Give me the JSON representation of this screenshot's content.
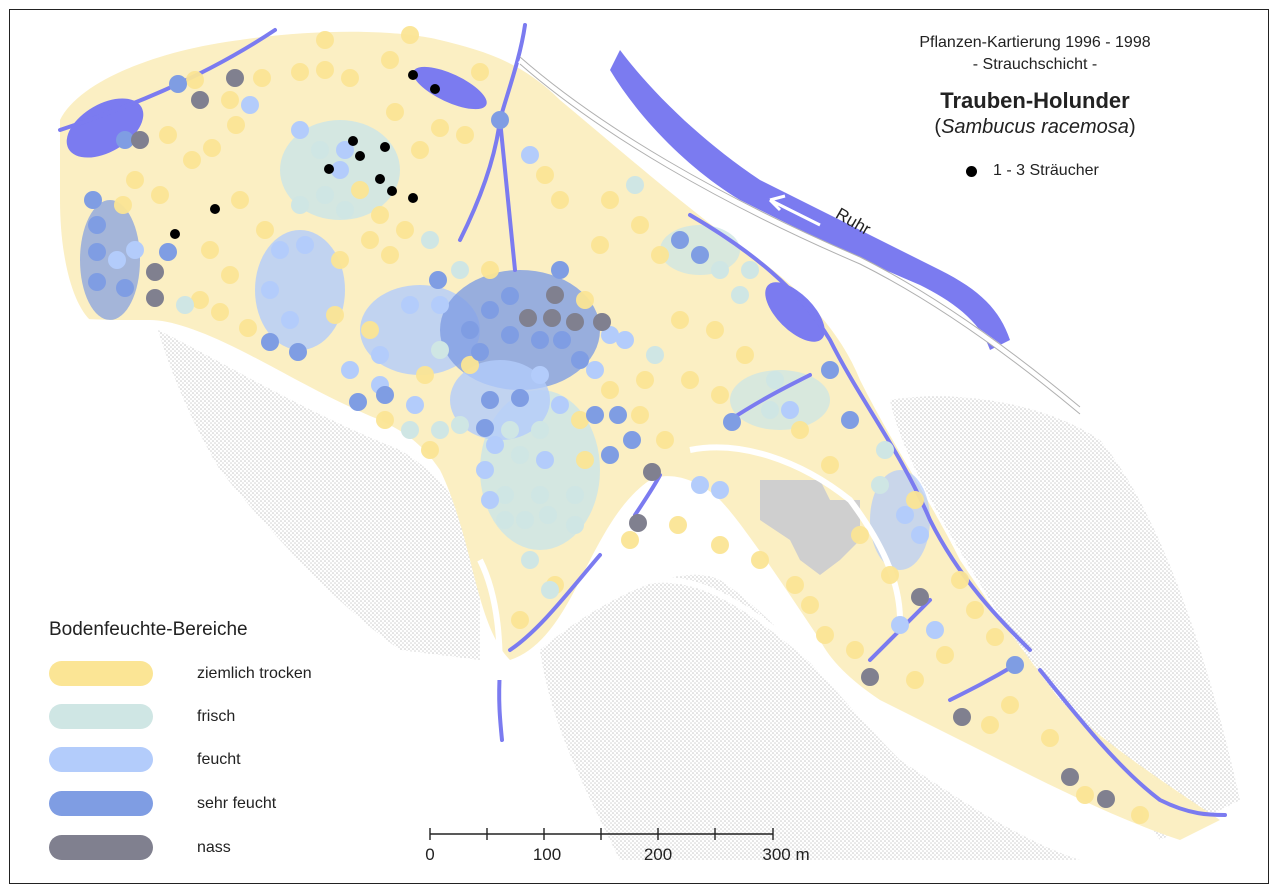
{
  "title": {
    "survey": "Pflanzen-Kartierung 1996 - 1998",
    "layer": "- Strauchschicht -",
    "species_common": "Trauben-Holunder",
    "species_latin": "Sambucus racemosa"
  },
  "shrub_legend": {
    "label": "1 - 3 Sträucher",
    "color": "#000000"
  },
  "river": {
    "label": "Ruhr",
    "color": "#7b7bf0"
  },
  "moisture_legend": {
    "title": "Bodenfeuchte-Bereiche",
    "items": [
      {
        "label": "ziemlich trocken",
        "color": "#fbe595"
      },
      {
        "label": "frisch",
        "color": "#cfe6e4"
      },
      {
        "label": "feucht",
        "color": "#b3ccfb"
      },
      {
        "label": "sehr feucht",
        "color": "#7f9de3"
      },
      {
        "label": "nass",
        "color": "#80808f"
      }
    ]
  },
  "scale_bar": {
    "labels": [
      "0",
      "100",
      "200",
      "300 m"
    ],
    "unit": "m"
  },
  "colors": {
    "area_fill": "#fbefc3",
    "building": "#cfcfcf",
    "stipple": "#d9d9d9"
  }
}
